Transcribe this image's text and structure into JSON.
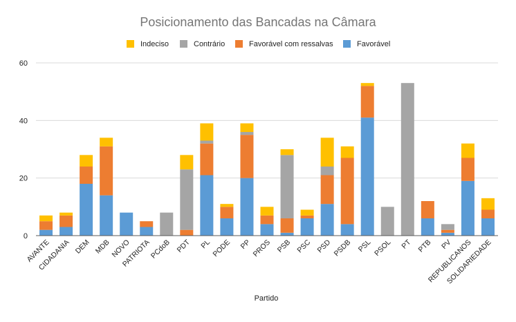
{
  "chart_data": {
    "type": "bar",
    "stacked": true,
    "title": "Posicionamento das Bancadas na Câmara",
    "xlabel": "Partido",
    "ylabel": "",
    "ylim": [
      0,
      60
    ],
    "yticks": [
      0,
      20,
      40,
      60
    ],
    "grid": true,
    "legend_position": "top",
    "categories": [
      "AVANTE",
      "CIDADANIA",
      "DEM",
      "MDB",
      "NOVO",
      "PATRIOTA",
      "PCdoB",
      "PDT",
      "PL",
      "PODE",
      "PP",
      "PROS",
      "PSB",
      "PSC",
      "PSD",
      "PSDB",
      "PSL",
      "PSOL",
      "PT",
      "PTB",
      "PV",
      "REPUBLICANOS",
      "SOLIDARIEDADE"
    ],
    "series": [
      {
        "name": "Favorável",
        "color": "#5B9BD5",
        "values": [
          2,
          3,
          18,
          14,
          8,
          3,
          0,
          0,
          21,
          6,
          20,
          4,
          1,
          6,
          11,
          4,
          41,
          0,
          0,
          6,
          1,
          19,
          6
        ]
      },
      {
        "name": "Favorável com ressalvas",
        "color": "#ED7D31",
        "values": [
          3,
          4,
          6,
          17,
          0,
          2,
          0,
          2,
          11,
          4,
          15,
          3,
          5,
          1,
          10,
          23,
          11,
          0,
          0,
          6,
          1,
          8,
          3
        ]
      },
      {
        "name": "Contrário",
        "color": "#A5A5A5",
        "values": [
          0,
          0,
          0,
          0,
          0,
          0,
          8,
          21,
          1,
          0,
          1,
          0,
          22,
          0,
          3,
          0,
          0,
          10,
          53,
          0,
          2,
          0,
          0
        ]
      },
      {
        "name": "Indeciso",
        "color": "#FFC000",
        "values": [
          2,
          1,
          4,
          3,
          0,
          0,
          0,
          5,
          6,
          1,
          3,
          3,
          2,
          2,
          10,
          4,
          1,
          0,
          0,
          0,
          0,
          5,
          4
        ]
      }
    ],
    "legend_order": [
      "Indeciso",
      "Contrário",
      "Favorável com ressalvas",
      "Favorável"
    ]
  }
}
